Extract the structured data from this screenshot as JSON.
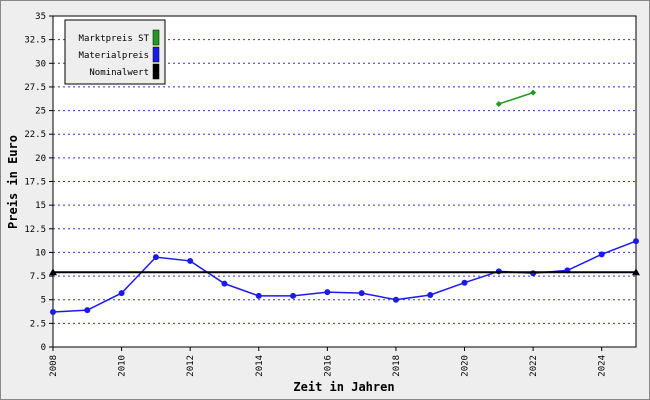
{
  "chart_data": {
    "type": "line",
    "xlabel": "Zeit in Jahren",
    "ylabel": "Preis in Euro",
    "xlim": [
      2008,
      2025
    ],
    "xticks": [
      2008,
      2010,
      2012,
      2014,
      2016,
      2018,
      2020,
      2022,
      2024
    ],
    "ylim": [
      0,
      35
    ],
    "yticks": [
      0,
      2.5,
      5,
      7.5,
      10,
      12.5,
      15,
      17.5,
      20,
      22.5,
      25,
      27.5,
      30,
      32.5,
      35
    ],
    "grid": true,
    "legend": "upper-left",
    "series": [
      {
        "name": "Marktpreis ST",
        "color": "#229922",
        "marker": "diamond",
        "x": [
          2021,
          2022
        ],
        "values": [
          25.7,
          26.9
        ]
      },
      {
        "name": "Materialpreis",
        "color": "#1a1aee",
        "marker": "circle",
        "x": [
          2008,
          2009,
          2010,
          2011,
          2012,
          2013,
          2014,
          2015,
          2016,
          2017,
          2018,
          2019,
          2020,
          2021,
          2022,
          2023,
          2024,
          2025
        ],
        "values": [
          3.7,
          3.9,
          5.7,
          9.5,
          9.1,
          6.7,
          5.4,
          5.4,
          5.8,
          5.7,
          5.0,
          5.5,
          6.8,
          8.0,
          7.8,
          8.1,
          9.8,
          11.2
        ]
      },
      {
        "name": "Nominalwert",
        "color": "#000000",
        "marker": "triangle",
        "x": [
          2008,
          2025
        ],
        "values": [
          7.9,
          7.9
        ]
      }
    ]
  }
}
